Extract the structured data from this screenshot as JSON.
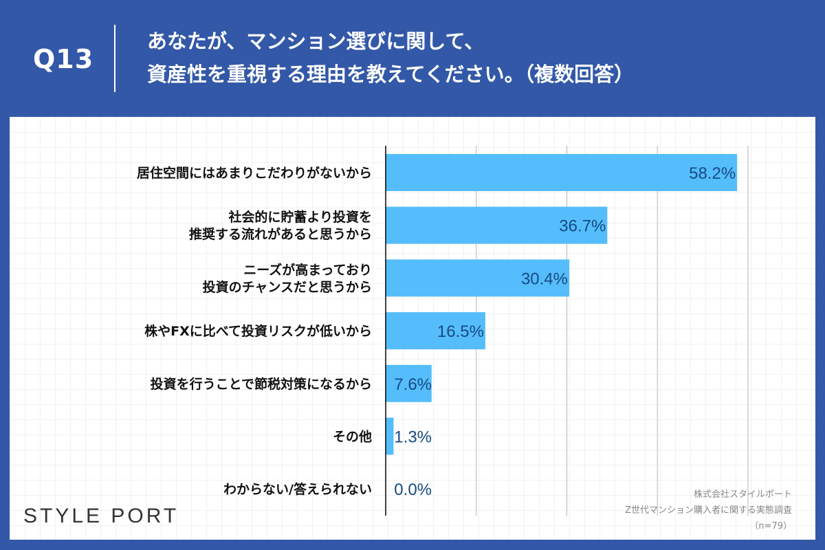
{
  "header": {
    "question_no": "Q13",
    "title_line1": "あなたが、マンション選びに関して、",
    "title_line2": "資産性を重視する理由を教えてください。（複数回答）"
  },
  "footer": {
    "logo": "STYLE PORT",
    "source_line1": "株式会社スタイルポート",
    "source_line2": "Z世代マンション購入者に関する実態調査",
    "source_line3": "（n=79）"
  },
  "colors": {
    "background": "#3358a8",
    "bar": "#55bdfc",
    "value_label": "#164a82"
  },
  "chart_data": {
    "type": "bar",
    "orientation": "horizontal",
    "categories": [
      [
        "居住空間にはあまりこだわりがないから"
      ],
      [
        "社会的に貯蓄より投資を",
        "推奨する流れがあると思うから"
      ],
      [
        "ニーズが高まっており",
        "投資のチャンスだと思うから"
      ],
      [
        "株やFXに比べて投資リスクが低いから"
      ],
      [
        "投資を行うことで節税対策になるから"
      ],
      [
        "その他"
      ],
      [
        "わからない/答えられない"
      ]
    ],
    "values": [
      58.2,
      36.7,
      30.4,
      16.5,
      7.6,
      1.3,
      0.0
    ],
    "labels": [
      "58.2%",
      "36.7%",
      "30.4%",
      "16.5%",
      "7.6%",
      "1.3%",
      "0.0%"
    ],
    "unit": "%",
    "xlim": [
      0,
      60
    ],
    "grid": true
  }
}
